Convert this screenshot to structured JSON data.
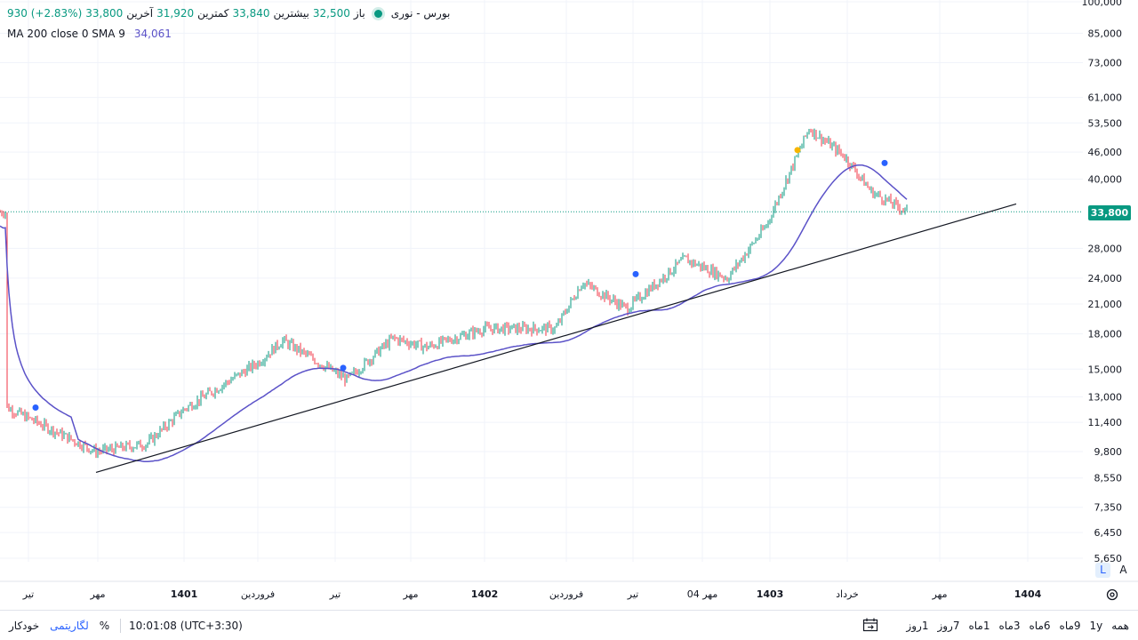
{
  "legend": {
    "symbol": "بورس - نوری",
    "open_label": "باز",
    "open": "32,500",
    "high_label": "بیشترین",
    "high": "33,840",
    "low_label": "کمترین",
    "low": "31,920",
    "close_label": "آخرین",
    "close": "33,800",
    "change": "930 (+2.83%)",
    "ma_label": "MA 200 close 0 SMA 9",
    "ma_value": "34,061"
  },
  "last_price_tag": "33,800",
  "colors": {
    "up": "#089981",
    "down": "#f23645",
    "ma": "#5b52c8",
    "trendline": "#131722",
    "price_line": "#089981"
  },
  "chart_data": {
    "type": "candlestick",
    "scale": "log",
    "y_ticks": [
      "100,000",
      "85,000",
      "73,000",
      "61,000",
      "53,500",
      "46,000",
      "40,000",
      "33,800",
      "28,000",
      "24,000",
      "21,000",
      "18,000",
      "15,000",
      "13,000",
      "11,400",
      "9,800",
      "8,550",
      "7,350",
      "6,450",
      "5,650"
    ],
    "x_ticks": [
      "تیر",
      "مهر",
      "1401",
      "فروردین",
      "تیر",
      "مهر",
      "1402",
      "فروردین",
      "تیر",
      "04 مهر",
      "1403",
      "خرداد",
      "مهر",
      "1404"
    ],
    "price_path": [
      {
        "x": "تیر 1400",
        "y": 12300
      },
      {
        "x": "مهر 1400",
        "y": 9800
      },
      {
        "x": "دی 1400",
        "y": 10200
      },
      {
        "x": "1401",
        "y": 12200
      },
      {
        "x": "فروردین 1401",
        "y": 15500
      },
      {
        "x": "خرداد 1401",
        "y": 17400
      },
      {
        "x": "تیر 1401",
        "y": 14200
      },
      {
        "x": "مهر 1401",
        "y": 17600
      },
      {
        "x": "آذر 1401",
        "y": 16800
      },
      {
        "x": "1402",
        "y": 18500
      },
      {
        "x": "فروردین 1402",
        "y": 18500
      },
      {
        "x": "اردیبهشت 1402",
        "y": 23500
      },
      {
        "x": "تیر 1402",
        "y": 20500
      },
      {
        "x": "مهر 1402",
        "y": 26500
      },
      {
        "x": "آبان 1402",
        "y": 24000
      },
      {
        "x": "1403",
        "y": 31500
      },
      {
        "x": "فروردین 1403",
        "y": 52000
      },
      {
        "x": "خرداد 1403",
        "y": 45000
      },
      {
        "x": "تیر 1403",
        "y": 37500
      },
      {
        "x": "مرداد 1403",
        "y": 33800
      }
    ],
    "series": [
      {
        "name": "MA 200 close 0 SMA 9",
        "type": "line",
        "color": "#5b52c8"
      }
    ],
    "markers": [
      {
        "x": "تیر 1400",
        "y": 12300,
        "color": "#2962ff"
      },
      {
        "x": "تیر 1401",
        "y": 15100,
        "color": "#2962ff"
      },
      {
        "x": "تیر 1402",
        "y": 24500,
        "color": "#2962ff"
      },
      {
        "x": "اردیبهشت 1403",
        "y": 46500,
        "color": "#f7b500"
      },
      {
        "x": "تیر 1403",
        "y": 43500,
        "color": "#2962ff"
      }
    ],
    "price_line": 33800
  },
  "bottom": {
    "timeframes": [
      "همه",
      "1y",
      "9ماه",
      "6ماه",
      "3ماه",
      "1ماه",
      "7روز",
      "1روز"
    ],
    "timezone": "10:01:08 (UTC+3:30)",
    "percent": "%",
    "log": "لگاریتمی",
    "auto": "خودکار"
  },
  "scale_buttons": {
    "log": "L",
    "auto": "A"
  }
}
